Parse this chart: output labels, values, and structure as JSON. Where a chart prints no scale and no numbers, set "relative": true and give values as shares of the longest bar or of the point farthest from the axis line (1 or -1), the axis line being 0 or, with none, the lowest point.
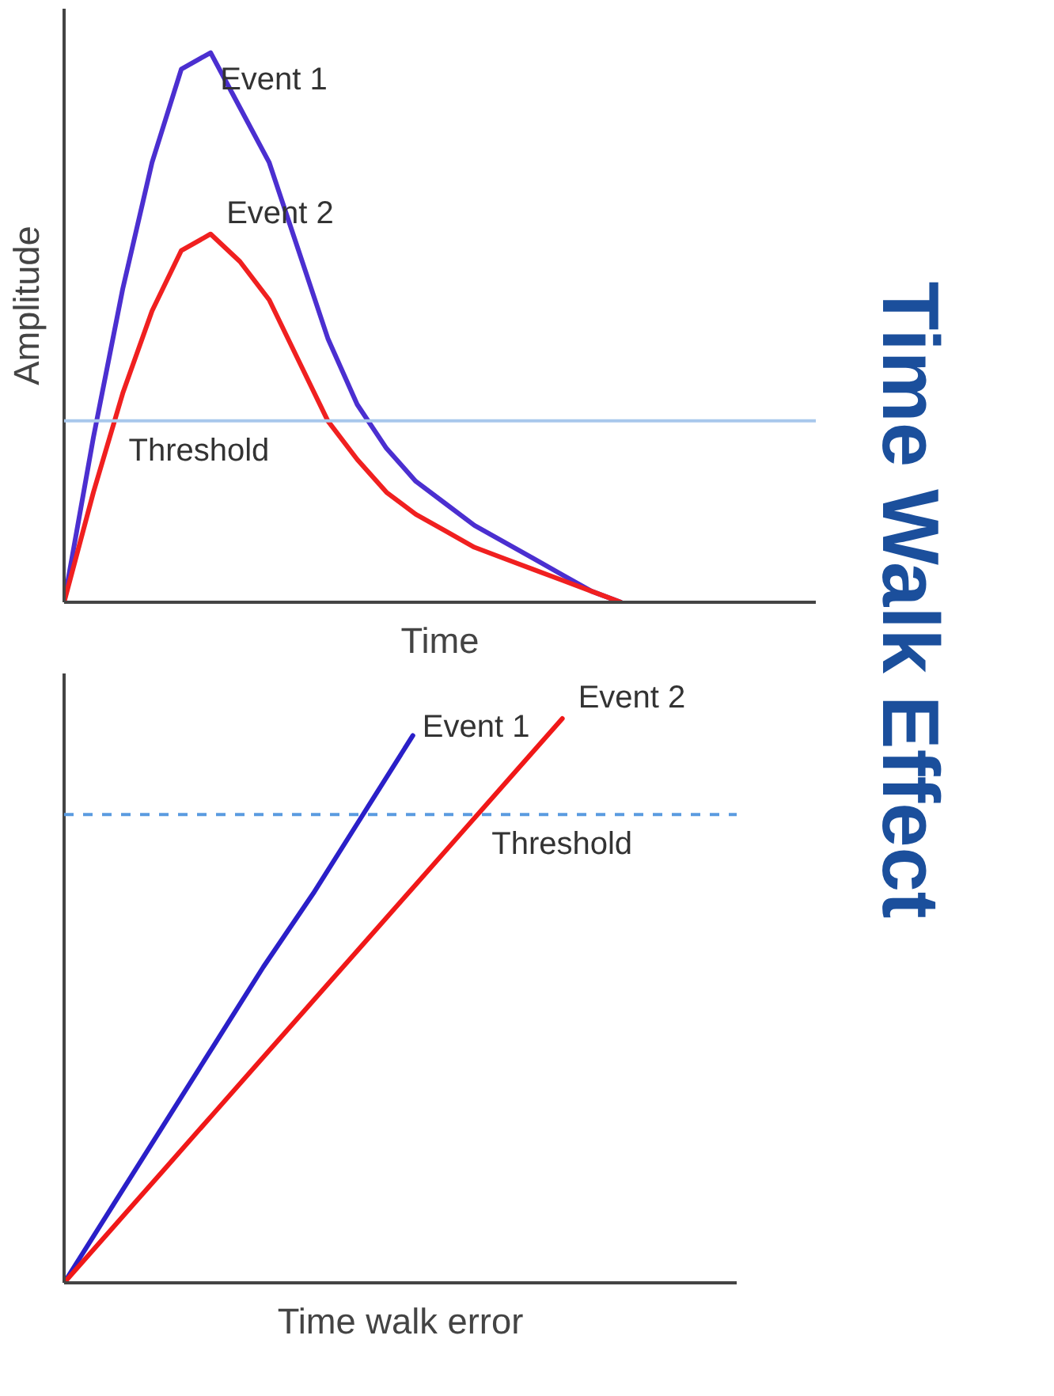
{
  "chart_data": [
    {
      "type": "line",
      "xlabel": "Time",
      "ylabel": "Amplitude",
      "relative": true,
      "categories": [
        null,
        null,
        null,
        null,
        null,
        null,
        null,
        null,
        null,
        null,
        null,
        null,
        null,
        null,
        null,
        null,
        null,
        null,
        null,
        null
      ],
      "series": [
        {
          "name": "Event 1",
          "color": "#4b2fd0",
          "values": [
            0,
            0.3,
            0.57,
            0.8,
            0.97,
            1,
            0.9,
            0.8,
            0.64,
            0.48,
            0.36,
            0.28,
            0.22,
            0.18,
            0.14,
            0.11,
            0.08,
            0.05,
            0.02,
            0
          ]
        },
        {
          "name": "Event 2",
          "color": "#f02020",
          "values": [
            0,
            0.2,
            0.38,
            0.53,
            0.64,
            0.67,
            0.62,
            0.55,
            0.44,
            0.33,
            0.26,
            0.2,
            0.16,
            0.13,
            0.1,
            0.08,
            0.06,
            0.04,
            0.02,
            0
          ]
        }
      ],
      "ref_lines": [
        {
          "axis": "y",
          "value": 0.33,
          "label": "Threshold",
          "color": "#a8c8ec",
          "line_style": "solid"
        }
      ],
      "grid": false,
      "tick_labels": false
    },
    {
      "type": "line",
      "xlabel": "Time walk error",
      "relative": true,
      "categories": [
        null,
        null,
        null,
        null,
        null,
        null,
        null,
        null,
        null,
        null,
        null
      ],
      "series": [
        {
          "name": "Event 1",
          "color": "#2a1fc8",
          "values": [
            0,
            0.14,
            0.28,
            0.42,
            0.56,
            0.69,
            0.83,
            0.97,
            null,
            null,
            null
          ]
        },
        {
          "name": "Event 2",
          "color": "#f01818",
          "values": [
            0,
            0.1,
            0.2,
            0.3,
            0.4,
            0.5,
            0.6,
            0.7,
            0.8,
            0.9,
            1
          ]
        }
      ],
      "ref_lines": [
        {
          "axis": "y",
          "value": 0.83,
          "label": "Threshold",
          "color": "#5a9be0",
          "line_style": "dashed"
        }
      ],
      "grid": false,
      "tick_labels": false
    },
    {
      "type": "other",
      "title": "Time Walk Effect"
    }
  ]
}
